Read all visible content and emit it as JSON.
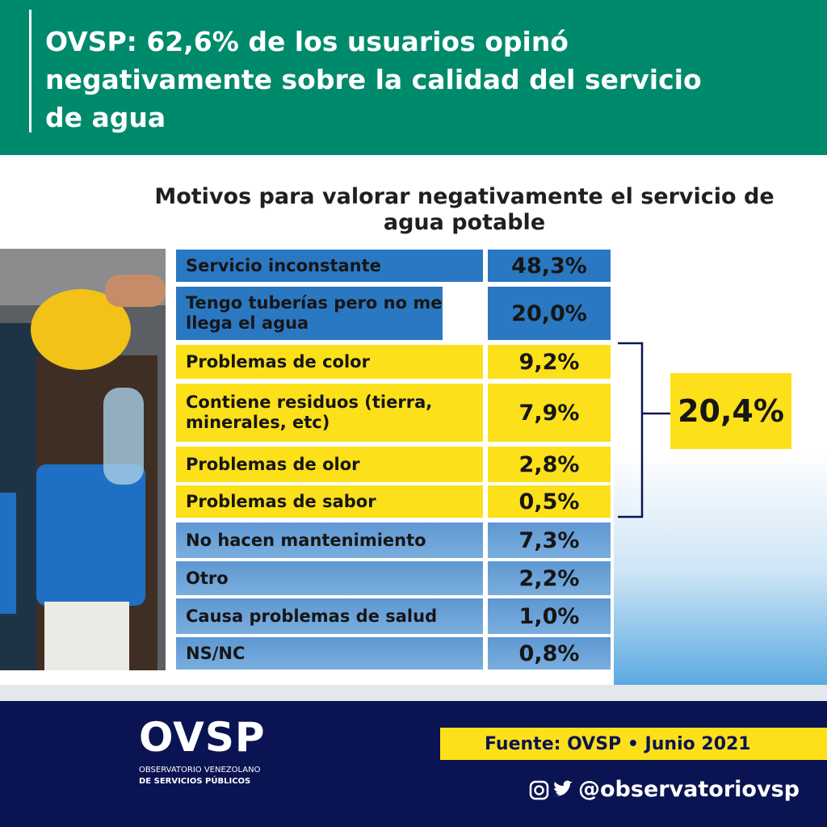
{
  "header": {
    "title": "OVSP: 62,6% de los usuarios opinó negativamente sobre la calidad del servicio de agua"
  },
  "table": {
    "title": "Motivos para valorar negativamente el servicio de agua potable",
    "rows": [
      {
        "label": "Servicio inconstante",
        "value": "48,3%"
      },
      {
        "label": "Tengo tuberías pero no me llega el agua",
        "value": "20,0%"
      },
      {
        "label": "Problemas de color",
        "value": "9,2%"
      },
      {
        "label": "Contiene residuos (tierra, minerales, etc)",
        "value": "7,9%"
      },
      {
        "label": "Problemas de olor",
        "value": "2,8%"
      },
      {
        "label": "Problemas de sabor",
        "value": "0,5%"
      },
      {
        "label": "No hacen mantenimiento",
        "value": "7,3%"
      },
      {
        "label": "Otro",
        "value": "2,2%"
      },
      {
        "label": "Causa problemas de salud",
        "value": "1,0%"
      },
      {
        "label": "NS/NC",
        "value": "0,8%"
      }
    ],
    "group_total": "20,4%"
  },
  "footer": {
    "logo": "OVSP",
    "logo_line1": "OBSERVATORIO VENEZOLANO",
    "logo_line2": "DE SERVICIOS PÚBLICOS",
    "source": "Fuente: OVSP • Junio 2021",
    "handle": "@observatoriovsp"
  }
}
